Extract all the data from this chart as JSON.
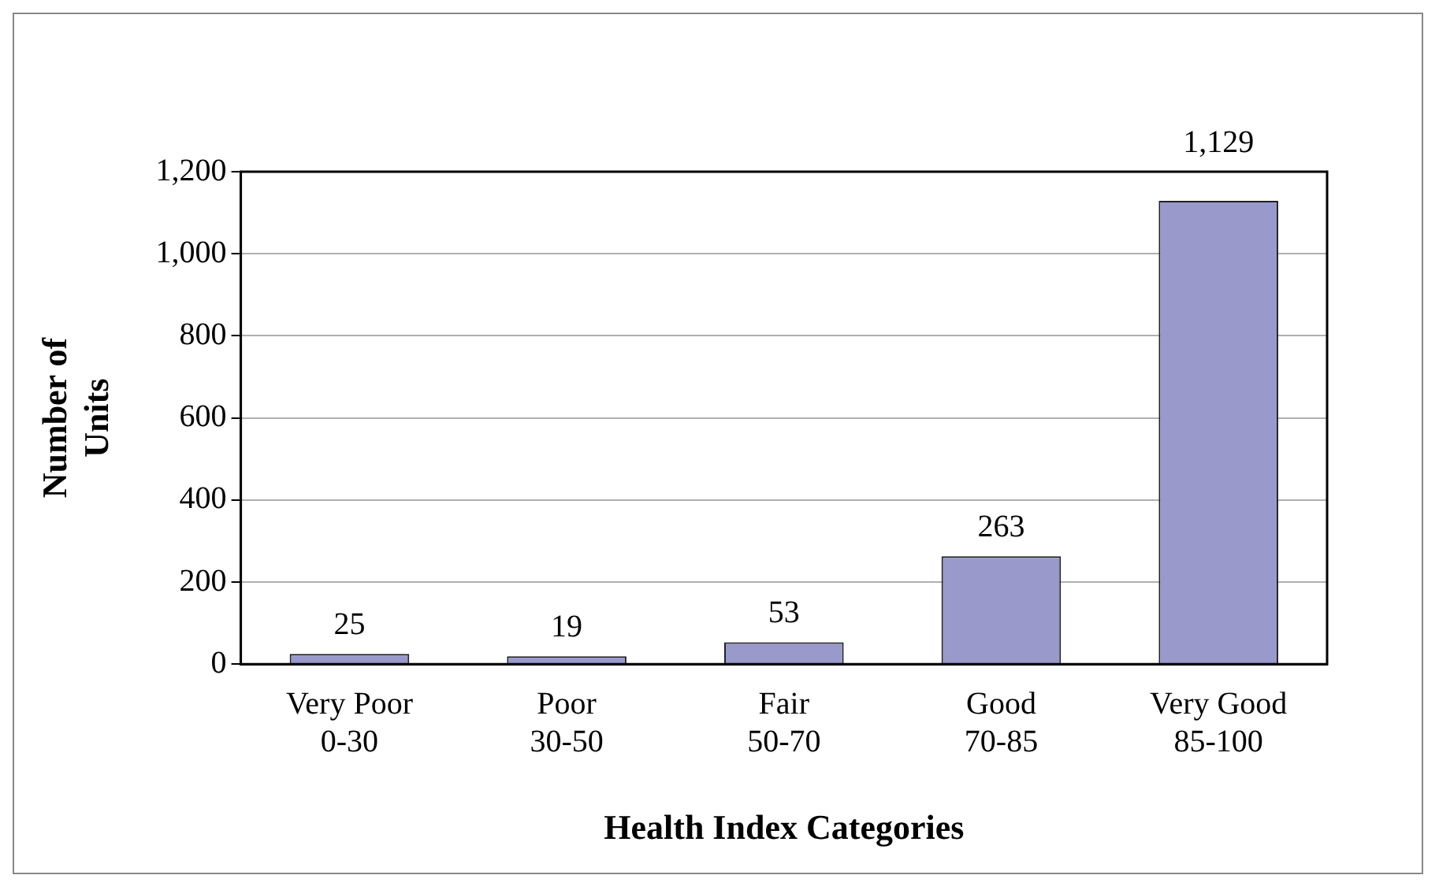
{
  "chart_data": {
    "type": "bar",
    "xlabel": "Health Index Categories",
    "ylabel": "Number of Units",
    "categories": [
      "Very Poor 0-30",
      "Poor 30-50",
      "Fair 50-70",
      "Good 70-85",
      "Very Good 85-100"
    ],
    "values": [
      25,
      19,
      53,
      263,
      1129
    ],
    "color": "#9999cc",
    "value_labels": [
      "25",
      "19",
      "53",
      "263",
      "1,129"
    ],
    "ylim": [
      0,
      1200
    ],
    "yticks": [
      0,
      200,
      400,
      600,
      800,
      {
        "value": 1000,
        "label": "1,000"
      },
      {
        "value": 1200,
        "label": "1,200"
      }
    ],
    "grid": "y"
  }
}
